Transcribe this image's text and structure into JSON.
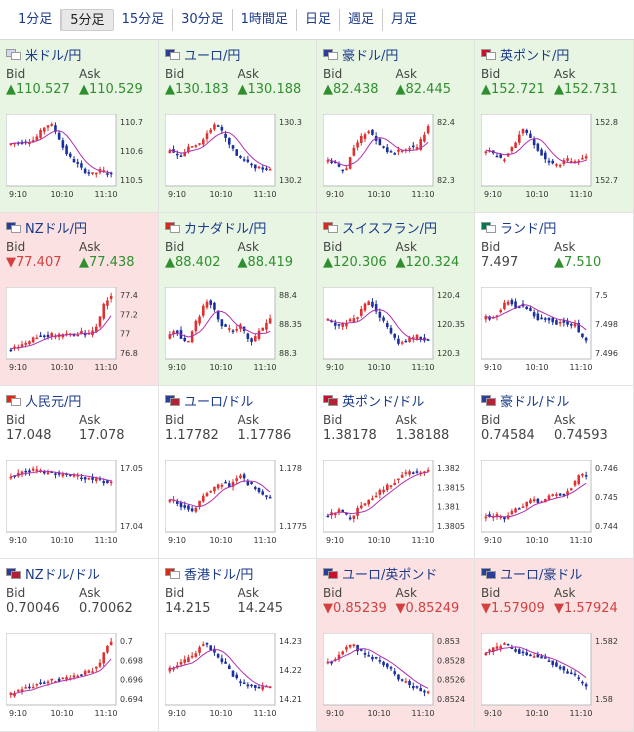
{
  "tabs": [
    "1分足",
    "5分足",
    "15分足",
    "30分足",
    "1時間足",
    "日足",
    "週足",
    "月足"
  ],
  "active_tab": 1,
  "colors": {
    "up_bg": "#e7f5e2",
    "down_bg": "#fbe1e1",
    "up_text": "#2f8f2f",
    "down_text": "#d24040",
    "candle_up": "#e03030",
    "candle_down": "#1c2fa0",
    "ma": "#b030b0"
  },
  "x_ticks": [
    "9:10",
    "10:10",
    "11:10"
  ],
  "labels": {
    "bid": "Bid",
    "ask": "Ask"
  },
  "pairs": [
    {
      "name": "米ドル/円",
      "flags": [
        "#d0d8f0",
        "#ffffff"
      ],
      "bid": "▲110.527",
      "ask": "▲110.529",
      "bid_dir": "up",
      "ask_dir": "up",
      "bg": "up",
      "y_ticks": [
        "110.7",
        "110.6",
        "110.5"
      ],
      "trend": [
        0.6,
        0.62,
        0.62,
        0.64,
        0.66,
        0.78,
        0.9,
        0.88,
        0.72,
        0.5,
        0.38,
        0.3,
        0.2,
        0.15,
        0.12,
        0.18,
        0.16,
        0.1
      ]
    },
    {
      "name": "ユーロ/円",
      "flags": [
        "#2a3e99",
        "#ffffff"
      ],
      "bid": "▲130.183",
      "ask": "▲130.188",
      "bid_dir": "up",
      "ask_dir": "up",
      "bg": "up",
      "y_ticks": [
        "130.3",
        "130.2"
      ],
      "trend": [
        0.5,
        0.45,
        0.4,
        0.55,
        0.6,
        0.58,
        0.7,
        0.85,
        0.9,
        0.75,
        0.6,
        0.45,
        0.35,
        0.3,
        0.25,
        0.22,
        0.2,
        0.18
      ]
    },
    {
      "name": "豪ドル/円",
      "flags": [
        "#2a3e99",
        "#ffffff"
      ],
      "bid": "▲82.438",
      "ask": "▲82.445",
      "bid_dir": "up",
      "ask_dir": "up",
      "bg": "up",
      "y_ticks": [
        "82.4",
        "82.3"
      ],
      "trend": [
        0.35,
        0.3,
        0.2,
        0.15,
        0.45,
        0.6,
        0.75,
        0.8,
        0.7,
        0.55,
        0.5,
        0.45,
        0.48,
        0.5,
        0.55,
        0.5,
        0.7,
        0.85
      ]
    },
    {
      "name": "英ポンド/円",
      "flags": [
        "#c8102e",
        "#ffffff"
      ],
      "bid": "▲152.721",
      "ask": "▲152.731",
      "bid_dir": "up",
      "ask_dir": "up",
      "bg": "up",
      "y_ticks": [
        "152.8",
        "152.7"
      ],
      "trend": [
        0.5,
        0.45,
        0.4,
        0.35,
        0.5,
        0.6,
        0.85,
        0.75,
        0.6,
        0.5,
        0.35,
        0.3,
        0.25,
        0.3,
        0.35,
        0.3,
        0.35,
        0.38
      ]
    },
    {
      "name": "NZドル/円",
      "flags": [
        "#2a3e99",
        "#ffffff"
      ],
      "bid": "▼77.407",
      "ask": "▲77.438",
      "bid_dir": "down",
      "ask_dir": "up",
      "bg": "down",
      "y_ticks": [
        "77.4",
        "77.2",
        "77",
        "76.8"
      ],
      "trend": [
        0.1,
        0.12,
        0.15,
        0.2,
        0.28,
        0.3,
        0.3,
        0.32,
        0.3,
        0.33,
        0.35,
        0.32,
        0.35,
        0.33,
        0.38,
        0.55,
        0.85,
        0.9
      ]
    },
    {
      "name": "カナダドル/円",
      "flags": [
        "#d52b1e",
        "#ffffff"
      ],
      "bid": "▲88.402",
      "ask": "▲88.419",
      "bid_dir": "up",
      "ask_dir": "up",
      "bg": "up",
      "y_ticks": [
        "88.4",
        "88.35",
        "88.3"
      ],
      "trend": [
        0.3,
        0.4,
        0.25,
        0.15,
        0.45,
        0.6,
        0.85,
        0.8,
        0.6,
        0.45,
        0.4,
        0.35,
        0.45,
        0.3,
        0.2,
        0.35,
        0.45,
        0.55
      ]
    },
    {
      "name": "スイスフラン/円",
      "flags": [
        "#d52b1e",
        "#ffffff"
      ],
      "bid": "▲120.306",
      "ask": "▲120.324",
      "bid_dir": "up",
      "ask_dir": "up",
      "bg": "up",
      "y_ticks": [
        "120.4",
        "120.35",
        "120.3"
      ],
      "trend": [
        0.55,
        0.5,
        0.45,
        0.5,
        0.55,
        0.6,
        0.75,
        0.85,
        0.7,
        0.55,
        0.45,
        0.3,
        0.2,
        0.2,
        0.25,
        0.3,
        0.25,
        0.22
      ]
    },
    {
      "name": "ランド/円",
      "flags": [
        "#007a4d",
        "#ffffff"
      ],
      "bid": "7.497",
      "ask": "▲7.510",
      "bid_dir": "flat",
      "ask_dir": "up",
      "bg": "flat",
      "y_ticks": [
        "7.5",
        "7.498",
        "7.496"
      ],
      "trend": [
        0.6,
        0.55,
        0.65,
        0.8,
        0.85,
        0.75,
        0.8,
        0.7,
        0.65,
        0.55,
        0.6,
        0.55,
        0.5,
        0.55,
        0.45,
        0.5,
        0.3,
        0.2
      ]
    },
    {
      "name": "人民元/円",
      "flags": [
        "#de2910",
        "#ffffff"
      ],
      "bid": "17.048",
      "ask": "17.078",
      "bid_dir": "flat",
      "ask_dir": "flat",
      "bg": "flat",
      "y_ticks": [
        "17.05",
        "17.04"
      ],
      "trend": [
        0.8,
        0.85,
        0.88,
        0.9,
        0.9,
        0.88,
        0.86,
        0.85,
        0.84,
        0.83,
        0.82,
        0.82,
        0.8,
        0.78,
        0.76,
        0.74,
        0.72,
        0.7
      ]
    },
    {
      "name": "ユーロ/ドル",
      "flags": [
        "#2a3e99",
        "#b22234"
      ],
      "bid": "1.17782",
      "ask": "1.17786",
      "bid_dir": "flat",
      "ask_dir": "flat",
      "bg": "flat",
      "y_ticks": [
        "1.178",
        "1.1775"
      ],
      "trend": [
        0.45,
        0.4,
        0.35,
        0.3,
        0.25,
        0.4,
        0.55,
        0.6,
        0.65,
        0.7,
        0.65,
        0.75,
        0.85,
        0.7,
        0.65,
        0.55,
        0.5,
        0.45
      ]
    },
    {
      "name": "英ポンド/ドル",
      "flags": [
        "#c8102e",
        "#b22234"
      ],
      "bid": "1.38178",
      "ask": "1.38188",
      "bid_dir": "flat",
      "ask_dir": "flat",
      "bg": "flat",
      "y_ticks": [
        "1.382",
        "1.3815",
        "1.381",
        "1.3805"
      ],
      "trend": [
        0.2,
        0.25,
        0.3,
        0.2,
        0.15,
        0.3,
        0.35,
        0.45,
        0.5,
        0.6,
        0.65,
        0.7,
        0.8,
        0.85,
        0.88,
        0.85,
        0.9,
        0.88
      ]
    },
    {
      "name": "豪ドル/ドル",
      "flags": [
        "#2a3e99",
        "#b22234"
      ],
      "bid": "0.74584",
      "ask": "0.74593",
      "bid_dir": "flat",
      "ask_dir": "flat",
      "bg": "flat",
      "y_ticks": [
        "0.746",
        "0.745",
        "0.744"
      ],
      "trend": [
        0.2,
        0.15,
        0.2,
        0.15,
        0.2,
        0.3,
        0.35,
        0.4,
        0.45,
        0.4,
        0.45,
        0.5,
        0.55,
        0.5,
        0.6,
        0.7,
        0.85,
        0.78
      ]
    },
    {
      "name": "NZドル/ドル",
      "flags": [
        "#2a3e99",
        "#b22234"
      ],
      "bid": "0.70046",
      "ask": "0.70062",
      "bid_dir": "flat",
      "ask_dir": "flat",
      "bg": "flat",
      "y_ticks": [
        "0.7",
        "0.698",
        "0.696",
        "0.694"
      ],
      "trend": [
        0.1,
        0.15,
        0.2,
        0.2,
        0.25,
        0.28,
        0.3,
        0.32,
        0.33,
        0.35,
        0.38,
        0.4,
        0.42,
        0.45,
        0.5,
        0.55,
        0.85,
        0.9
      ]
    },
    {
      "name": "香港ドル/円",
      "flags": [
        "#de2910",
        "#ffffff"
      ],
      "bid": "14.215",
      "ask": "14.245",
      "bid_dir": "flat",
      "ask_dir": "flat",
      "bg": "flat",
      "y_ticks": [
        "14.23",
        "14.22",
        "14.21"
      ],
      "trend": [
        0.5,
        0.55,
        0.6,
        0.65,
        0.7,
        0.85,
        0.9,
        0.8,
        0.7,
        0.6,
        0.5,
        0.35,
        0.3,
        0.25,
        0.22,
        0.2,
        0.22,
        0.2
      ]
    },
    {
      "name": "ユーロ/英ポンド",
      "flags": [
        "#2a3e99",
        "#c8102e"
      ],
      "bid": "▼0.85239",
      "ask": "▼0.85249",
      "bid_dir": "down",
      "ask_dir": "down",
      "bg": "down",
      "y_ticks": [
        "0.853",
        "0.8528",
        "0.8526",
        "0.8524"
      ],
      "trend": [
        0.6,
        0.65,
        0.75,
        0.85,
        0.9,
        0.8,
        0.75,
        0.7,
        0.65,
        0.6,
        0.55,
        0.45,
        0.35,
        0.3,
        0.25,
        0.2,
        0.15,
        0.12
      ]
    },
    {
      "name": "ユーロ/豪ドル",
      "flags": [
        "#2a3e99",
        "#2a3e99"
      ],
      "bid": "▼1.57909",
      "ask": "▼1.57924",
      "bid_dir": "down",
      "ask_dir": "down",
      "bg": "down",
      "y_ticks": [
        "1.582",
        "1.58"
      ],
      "trend": [
        0.75,
        0.8,
        0.85,
        0.9,
        0.85,
        0.8,
        0.75,
        0.7,
        0.72,
        0.68,
        0.65,
        0.6,
        0.55,
        0.5,
        0.45,
        0.4,
        0.3,
        0.2
      ]
    }
  ]
}
